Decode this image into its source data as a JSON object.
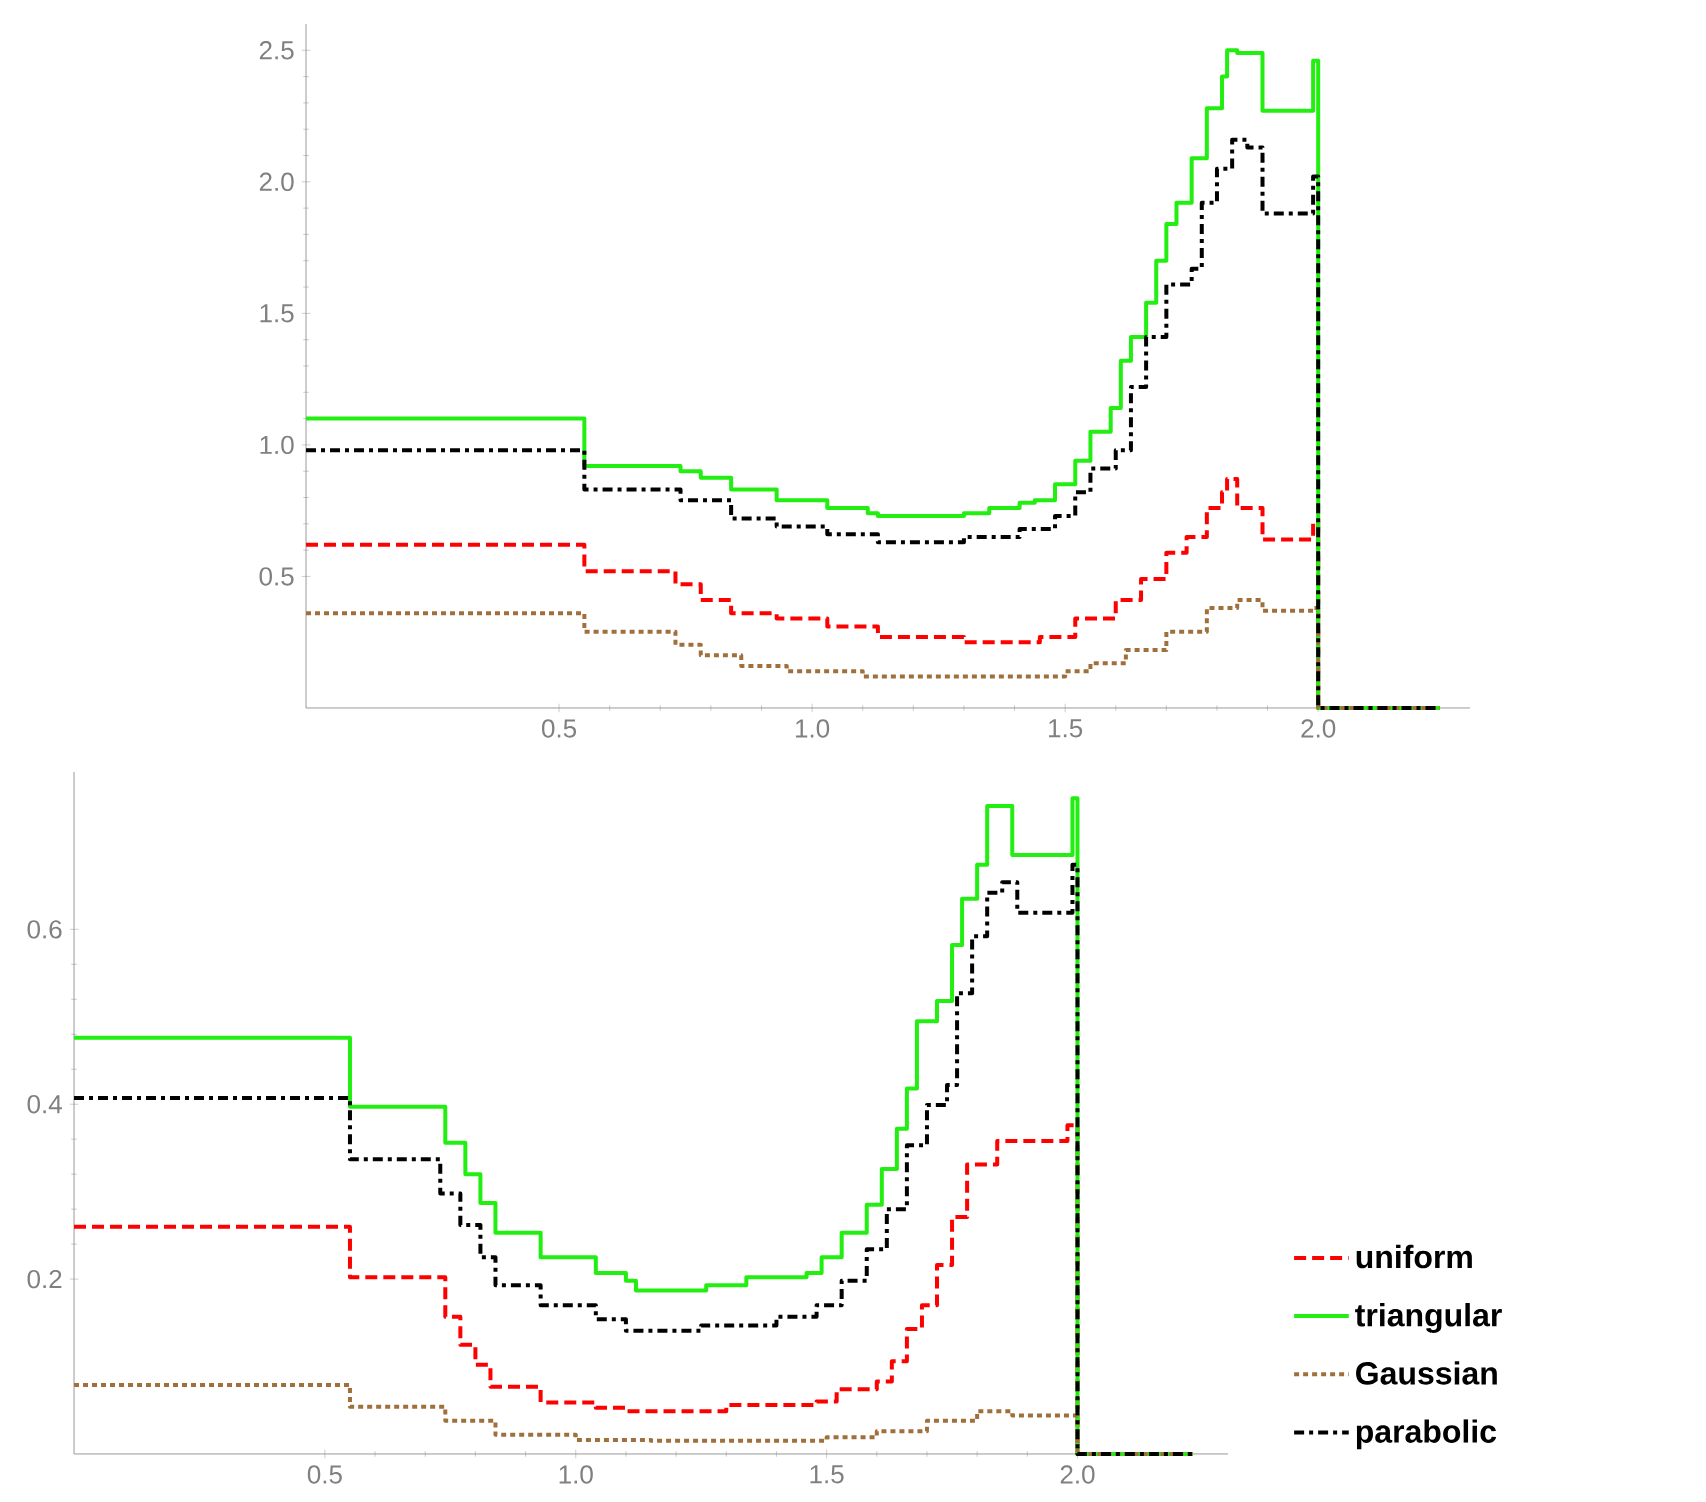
{
  "chart_data": [
    {
      "type": "step",
      "xlim": [
        0,
        2.3
      ],
      "ylim": [
        0,
        2.6
      ],
      "xticks": [
        {
          "value": 0.5,
          "label": "0.5"
        },
        {
          "value": 1.0,
          "label": "1.0"
        },
        {
          "value": 1.5,
          "label": "1.5"
        },
        {
          "value": 2.0,
          "label": "2.0"
        }
      ],
      "yticks": [
        {
          "value": 0.5,
          "label": "0.5"
        },
        {
          "value": 1.0,
          "label": "1.0"
        },
        {
          "value": 1.5,
          "label": "1.5"
        },
        {
          "value": 2.0,
          "label": "2.0"
        },
        {
          "value": 2.5,
          "label": "2.5"
        }
      ],
      "series": [
        {
          "color": "#ff0000",
          "line_style": "dashed",
          "x": [
            0,
            0.55,
            0.73,
            0.78,
            0.84,
            0.93,
            1.03,
            1.13,
            1.3,
            1.45,
            1.52,
            1.6,
            1.65,
            1.7,
            1.74,
            1.78,
            1.81,
            1.82,
            1.84,
            1.89,
            1.99,
            2.0,
            2.24
          ],
          "values": [
            0.62,
            0.52,
            0.47,
            0.41,
            0.36,
            0.34,
            0.31,
            0.27,
            0.25,
            0.27,
            0.34,
            0.41,
            0.49,
            0.59,
            0.65,
            0.76,
            0.82,
            0.87,
            0.76,
            0.64,
            0.71,
            0,
            0
          ]
        },
        {
          "color": "#22ee11",
          "line_style": "solid",
          "x": [
            0,
            0.55,
            0.74,
            0.78,
            0.84,
            0.93,
            1.03,
            1.11,
            1.13,
            1.3,
            1.35,
            1.41,
            1.44,
            1.48,
            1.52,
            1.55,
            1.59,
            1.61,
            1.63,
            1.66,
            1.68,
            1.7,
            1.72,
            1.75,
            1.78,
            1.81,
            1.82,
            1.84,
            1.89,
            1.99,
            2.0,
            2.24
          ],
          "values": [
            1.1,
            0.92,
            0.9,
            0.875,
            0.83,
            0.79,
            0.76,
            0.74,
            0.73,
            0.74,
            0.76,
            0.78,
            0.79,
            0.85,
            0.94,
            1.05,
            1.14,
            1.32,
            1.41,
            1.54,
            1.7,
            1.84,
            1.92,
            2.09,
            2.28,
            2.4,
            2.5,
            2.49,
            2.27,
            2.46,
            0,
            0
          ]
        },
        {
          "color": "#a0703c",
          "line_style": "dotted",
          "x": [
            0,
            0.55,
            0.73,
            0.78,
            0.86,
            0.95,
            1.1,
            1.5,
            1.55,
            1.62,
            1.7,
            1.78,
            1.84,
            1.89,
            1.99,
            2.0,
            2.24
          ],
          "values": [
            0.36,
            0.29,
            0.24,
            0.2,
            0.16,
            0.14,
            0.12,
            0.14,
            0.17,
            0.22,
            0.29,
            0.38,
            0.41,
            0.37,
            0.38,
            0,
            0
          ]
        },
        {
          "color": "#000000",
          "line_style": "dashdot",
          "x": [
            0,
            0.55,
            0.74,
            0.84,
            0.93,
            1.03,
            1.13,
            1.3,
            1.41,
            1.48,
            1.52,
            1.55,
            1.6,
            1.63,
            1.66,
            1.7,
            1.75,
            1.77,
            1.8,
            1.83,
            1.86,
            1.89,
            1.99,
            2.0,
            2.24
          ],
          "values": [
            0.98,
            0.83,
            0.79,
            0.72,
            0.69,
            0.66,
            0.63,
            0.65,
            0.68,
            0.73,
            0.82,
            0.91,
            0.98,
            1.22,
            1.41,
            1.61,
            1.67,
            1.92,
            2.05,
            2.16,
            2.13,
            1.88,
            2.02,
            0,
            0
          ]
        }
      ]
    },
    {
      "type": "step",
      "xlim": [
        0,
        2.3
      ],
      "ylim": [
        0,
        0.78
      ],
      "legend": "right",
      "xticks": [
        {
          "value": 0.5,
          "label": "0.5"
        },
        {
          "value": 1.0,
          "label": "1.0"
        },
        {
          "value": 1.5,
          "label": "1.5"
        },
        {
          "value": 2.0,
          "label": "2.0"
        }
      ],
      "yticks": [
        {
          "value": 0.2,
          "label": "0.2"
        },
        {
          "value": 0.4,
          "label": "0.4"
        },
        {
          "value": 0.6,
          "label": "0.6"
        }
      ],
      "series": [
        {
          "name": "uniform",
          "color": "#ff0000",
          "line_style": "dashed",
          "x": [
            0,
            0.55,
            0.74,
            0.77,
            0.8,
            0.83,
            0.93,
            1.04,
            1.1,
            1.3,
            1.48,
            1.52,
            1.6,
            1.63,
            1.66,
            1.69,
            1.72,
            1.75,
            1.78,
            1.84,
            1.98,
            2.0,
            2.23
          ],
          "values": [
            0.26,
            0.202,
            0.157,
            0.125,
            0.102,
            0.077,
            0.059,
            0.053,
            0.049,
            0.056,
            0.06,
            0.074,
            0.083,
            0.106,
            0.143,
            0.17,
            0.216,
            0.271,
            0.331,
            0.358,
            0.376,
            0,
            0
          ]
        },
        {
          "name": "triangular",
          "color": "#22ee11",
          "line_style": "solid",
          "x": [
            0,
            0.55,
            0.74,
            0.78,
            0.81,
            0.84,
            0.93,
            1.04,
            1.1,
            1.12,
            1.26,
            1.34,
            1.46,
            1.49,
            1.53,
            1.58,
            1.61,
            1.64,
            1.66,
            1.68,
            1.72,
            1.75,
            1.77,
            1.8,
            1.82,
            1.87,
            1.99,
            2.0,
            2.23
          ],
          "values": [
            0.476,
            0.397,
            0.356,
            0.32,
            0.287,
            0.253,
            0.225,
            0.207,
            0.198,
            0.187,
            0.193,
            0.202,
            0.207,
            0.225,
            0.253,
            0.285,
            0.326,
            0.372,
            0.418,
            0.495,
            0.518,
            0.582,
            0.635,
            0.674,
            0.741,
            0.685,
            0.75,
            0,
            0
          ]
        },
        {
          "name": "Gaussian",
          "color": "#a0703c",
          "line_style": "dotted",
          "x": [
            0,
            0.55,
            0.74,
            0.84,
            1.0,
            1.15,
            1.5,
            1.6,
            1.7,
            1.8,
            1.87,
            1.99,
            2.0,
            2.23
          ],
          "values": [
            0.079,
            0.054,
            0.038,
            0.022,
            0.016,
            0.015,
            0.019,
            0.026,
            0.038,
            0.049,
            0.044,
            0.044,
            0,
            0
          ]
        },
        {
          "name": "parabolic",
          "color": "#000000",
          "line_style": "dashdot",
          "x": [
            0,
            0.55,
            0.73,
            0.77,
            0.81,
            0.84,
            0.93,
            1.04,
            1.1,
            1.25,
            1.4,
            1.48,
            1.53,
            1.58,
            1.62,
            1.66,
            1.7,
            1.74,
            1.76,
            1.79,
            1.82,
            1.85,
            1.88,
            1.99,
            2.0,
            2.23
          ],
          "values": [
            0.407,
            0.337,
            0.298,
            0.262,
            0.225,
            0.193,
            0.17,
            0.154,
            0.141,
            0.147,
            0.157,
            0.17,
            0.198,
            0.234,
            0.28,
            0.353,
            0.399,
            0.422,
            0.527,
            0.592,
            0.642,
            0.654,
            0.619,
            0.674,
            0,
            0
          ]
        }
      ]
    }
  ]
}
